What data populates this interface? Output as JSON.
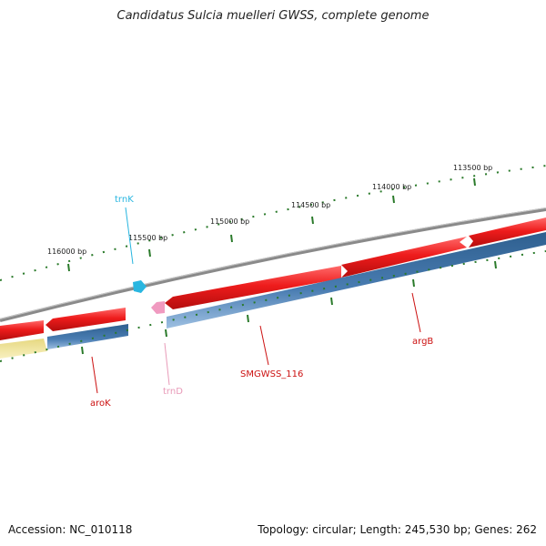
{
  "title": "Candidatus Sulcia muelleri GWSS, complete genome",
  "footer": {
    "accession": "Accession: NC_010118",
    "summary": "Topology: circular; Length: 245,530 bp; Genes: 262"
  },
  "scale_labels": [
    "116000 bp",
    "115500 bp",
    "115000 bp",
    "114500 bp",
    "114000 bp",
    "113500 bp"
  ],
  "gene_labels": [
    {
      "name": "trnK",
      "color": "#29b6e0"
    },
    {
      "name": "trnD",
      "color": "#e89ab8"
    },
    {
      "name": "aroK",
      "color": "#cc1111"
    },
    {
      "name": "SMGWSS_116",
      "color": "#cc1111"
    },
    {
      "name": "argB",
      "color": "#cc1111"
    }
  ],
  "colors": {
    "backbone": "#8a8a8a",
    "forward_cds": "#ee1c1c",
    "reverse_cds": "#3f73a8",
    "other_feature": "#efe39a",
    "trna_forward": "#29b6e0",
    "trna_reverse": "#f09ac0",
    "tick": "#2a7a2a"
  }
}
